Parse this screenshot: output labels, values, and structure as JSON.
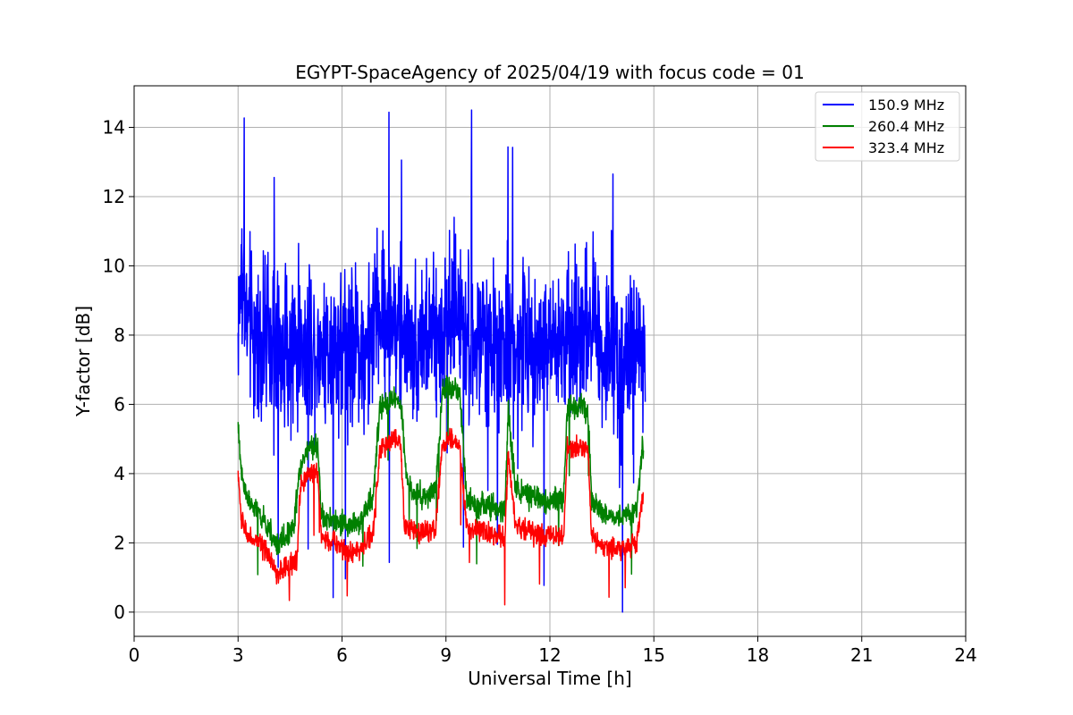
{
  "chart_data": {
    "type": "line",
    "title": "EGYPT-SpaceAgency of 2025/04/19 with focus code = 01",
    "xlabel": "Universal Time [h]",
    "ylabel": "Y-factor [dB]",
    "xlim": [
      0,
      24
    ],
    "ylim": [
      -0.7,
      15.2
    ],
    "xticks": [
      0,
      3,
      6,
      9,
      12,
      15,
      18,
      21,
      24
    ],
    "xtick_labels": [
      "0",
      "3",
      "6",
      "9",
      "12",
      "15",
      "18",
      "21",
      "24"
    ],
    "yticks": [
      0,
      2,
      4,
      6,
      8,
      10,
      12,
      14
    ],
    "ytick_labels": [
      "0",
      "2",
      "4",
      "6",
      "8",
      "10",
      "12",
      "14"
    ],
    "grid": true,
    "legend_position": "top-right",
    "series": [
      {
        "name": "150.9 MHz",
        "color": "#0000ff",
        "noise_amplitude": 2.2,
        "x": [
          3.0,
          3.1,
          3.3,
          3.6,
          4.0,
          4.5,
          5.0,
          5.3,
          5.8,
          6.3,
          6.8,
          7.0,
          7.3,
          7.6,
          8.0,
          8.4,
          8.8,
          9.0,
          9.3,
          9.6,
          10.0,
          10.4,
          10.7,
          10.9,
          11.2,
          11.6,
          12.0,
          12.4,
          12.8,
          13.0,
          13.3,
          13.6,
          14.0,
          14.4,
          14.75
        ],
        "y": [
          8.5,
          9.5,
          8.2,
          7.8,
          7.6,
          7.6,
          7.8,
          7.7,
          7.7,
          7.8,
          7.5,
          8.8,
          8.4,
          8.2,
          7.8,
          7.9,
          7.8,
          8.6,
          8.8,
          7.9,
          7.8,
          7.6,
          7.2,
          7.8,
          7.6,
          7.7,
          7.6,
          7.8,
          7.8,
          8.6,
          8.4,
          7.4,
          7.3,
          7.5,
          7.6
        ]
      },
      {
        "name": "260.4 MHz",
        "color": "#008000",
        "noise_amplitude": 0.35,
        "x": [
          3.0,
          3.1,
          3.3,
          3.6,
          3.9,
          4.1,
          4.3,
          4.6,
          4.8,
          5.0,
          5.3,
          5.4,
          5.8,
          6.2,
          6.6,
          6.9,
          7.1,
          7.5,
          7.7,
          7.9,
          8.3,
          8.7,
          8.9,
          9.1,
          9.4,
          9.6,
          10.0,
          10.4,
          10.7,
          10.8,
          11.0,
          11.5,
          12.0,
          12.4,
          12.5,
          12.9,
          13.1,
          13.2,
          13.5,
          14.0,
          14.5,
          14.7
        ],
        "y": [
          5.3,
          4.0,
          3.2,
          2.8,
          2.4,
          1.9,
          2.1,
          2.5,
          4.2,
          4.7,
          4.8,
          2.8,
          2.6,
          2.5,
          2.7,
          3.4,
          5.9,
          6.2,
          6.0,
          3.6,
          3.3,
          3.5,
          6.4,
          6.5,
          6.3,
          3.3,
          3.1,
          3.0,
          2.9,
          5.9,
          3.6,
          3.3,
          3.2,
          3.3,
          5.9,
          6.0,
          5.8,
          3.4,
          2.8,
          2.7,
          3.0,
          5.0
        ]
      },
      {
        "name": "323.4 MHz",
        "color": "#ff0000",
        "noise_amplitude": 0.3,
        "x": [
          3.0,
          3.1,
          3.3,
          3.6,
          3.9,
          4.1,
          4.4,
          4.7,
          4.8,
          5.0,
          5.3,
          5.4,
          5.8,
          6.2,
          6.6,
          6.9,
          7.1,
          7.5,
          7.7,
          7.8,
          8.3,
          8.7,
          8.9,
          9.1,
          9.4,
          9.6,
          10.0,
          10.5,
          10.7,
          10.8,
          11.0,
          11.5,
          12.0,
          12.4,
          12.5,
          12.9,
          13.1,
          13.2,
          13.5,
          14.0,
          14.5,
          14.7
        ],
        "y": [
          4.0,
          2.6,
          2.2,
          2.0,
          1.6,
          1.1,
          1.3,
          1.5,
          3.6,
          4.0,
          4.0,
          2.2,
          2.0,
          1.7,
          1.9,
          2.3,
          4.7,
          5.0,
          4.8,
          2.5,
          2.3,
          2.4,
          4.9,
          5.0,
          4.8,
          2.4,
          2.3,
          2.2,
          2.1,
          4.6,
          2.5,
          2.3,
          2.2,
          2.2,
          4.7,
          4.8,
          4.6,
          2.2,
          1.9,
          1.8,
          2.0,
          3.4
        ]
      }
    ]
  }
}
